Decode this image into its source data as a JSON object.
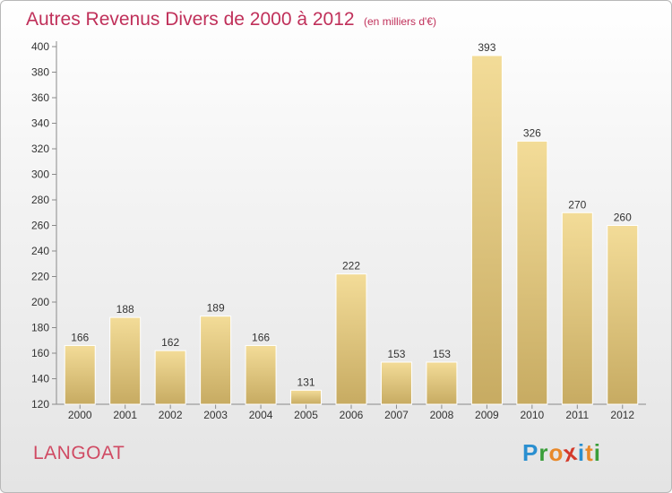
{
  "title": "Autres Revenus Divers de 2000 à 2012",
  "subtitle": "(en milliers d'€)",
  "commune": "LANGOAT",
  "logo": {
    "text": "Proxiti",
    "colors": [
      "#2a8fd0",
      "#3a9e3a",
      "#e8892a",
      "#d43a2a",
      "#2a8fd0",
      "#e8892a",
      "#3a9e3a"
    ]
  },
  "colors": {
    "title": "#c0305a",
    "bar_light": "#f3dc98",
    "bar_dark": "#c7ab62",
    "axis": "#8a8a8a"
  },
  "chart_data": {
    "type": "bar",
    "categories": [
      "2000",
      "2001",
      "2002",
      "2003",
      "2004",
      "2005",
      "2006",
      "2007",
      "2008",
      "2009",
      "2010",
      "2011",
      "2012"
    ],
    "values": [
      166,
      188,
      162,
      189,
      166,
      131,
      222,
      153,
      153,
      393,
      326,
      270,
      260
    ],
    "title": "Autres Revenus Divers de 2000 à 2012",
    "ylim": [
      120,
      400
    ],
    "yticks": [
      120,
      140,
      160,
      180,
      200,
      220,
      240,
      260,
      280,
      300,
      320,
      340,
      360,
      380,
      400
    ],
    "grid": false,
    "data_labels": true
  }
}
